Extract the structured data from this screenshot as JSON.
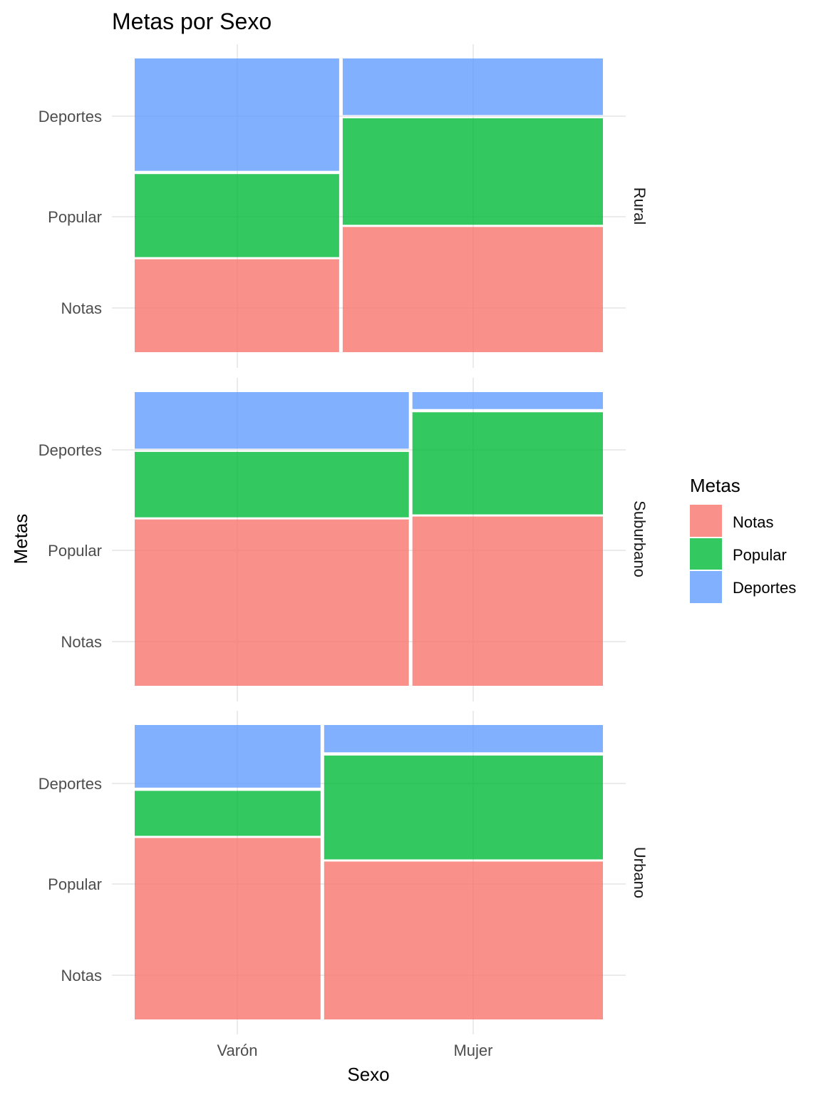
{
  "chart_data": {
    "type": "mosaic",
    "title": "Metas por Sexo",
    "xlabel": "Sexo",
    "ylabel": "Metas",
    "x_categories": [
      "Varón",
      "Mujer"
    ],
    "y_categories": [
      "Notas",
      "Popular",
      "Deportes"
    ],
    "y_tick_labels": [
      "Notas",
      "Popular",
      "Deportes"
    ],
    "facets": [
      {
        "name": "Rural",
        "x_proportions": [
          0.44,
          0.56
        ],
        "stacks": [
          {
            "sexo": "Varón",
            "Notas": 0.32,
            "Popular": 0.29,
            "Deportes": 0.39
          },
          {
            "sexo": "Mujer",
            "Notas": 0.43,
            "Popular": 0.37,
            "Deportes": 0.2
          }
        ]
      },
      {
        "name": "Suburbano",
        "x_proportions": [
          0.59,
          0.41
        ],
        "stacks": [
          {
            "sexo": "Varón",
            "Notas": 0.57,
            "Popular": 0.23,
            "Deportes": 0.2
          },
          {
            "sexo": "Mujer",
            "Notas": 0.58,
            "Popular": 0.355,
            "Deportes": 0.065
          }
        ]
      },
      {
        "name": "Urbano",
        "x_proportions": [
          0.4,
          0.6
        ],
        "stacks": [
          {
            "sexo": "Varón",
            "Notas": 0.62,
            "Popular": 0.16,
            "Deportes": 0.22
          },
          {
            "sexo": "Mujer",
            "Notas": 0.54,
            "Popular": 0.36,
            "Deportes": 0.1
          }
        ]
      }
    ],
    "legend": {
      "title": "Metas",
      "position": "right",
      "entries": [
        {
          "label": "Notas",
          "color": "#F8766D"
        },
        {
          "label": "Popular",
          "color": "#00BA38"
        },
        {
          "label": "Deportes",
          "color": "#619CFF"
        }
      ]
    },
    "fill_alpha": 0.8,
    "grid": true
  }
}
